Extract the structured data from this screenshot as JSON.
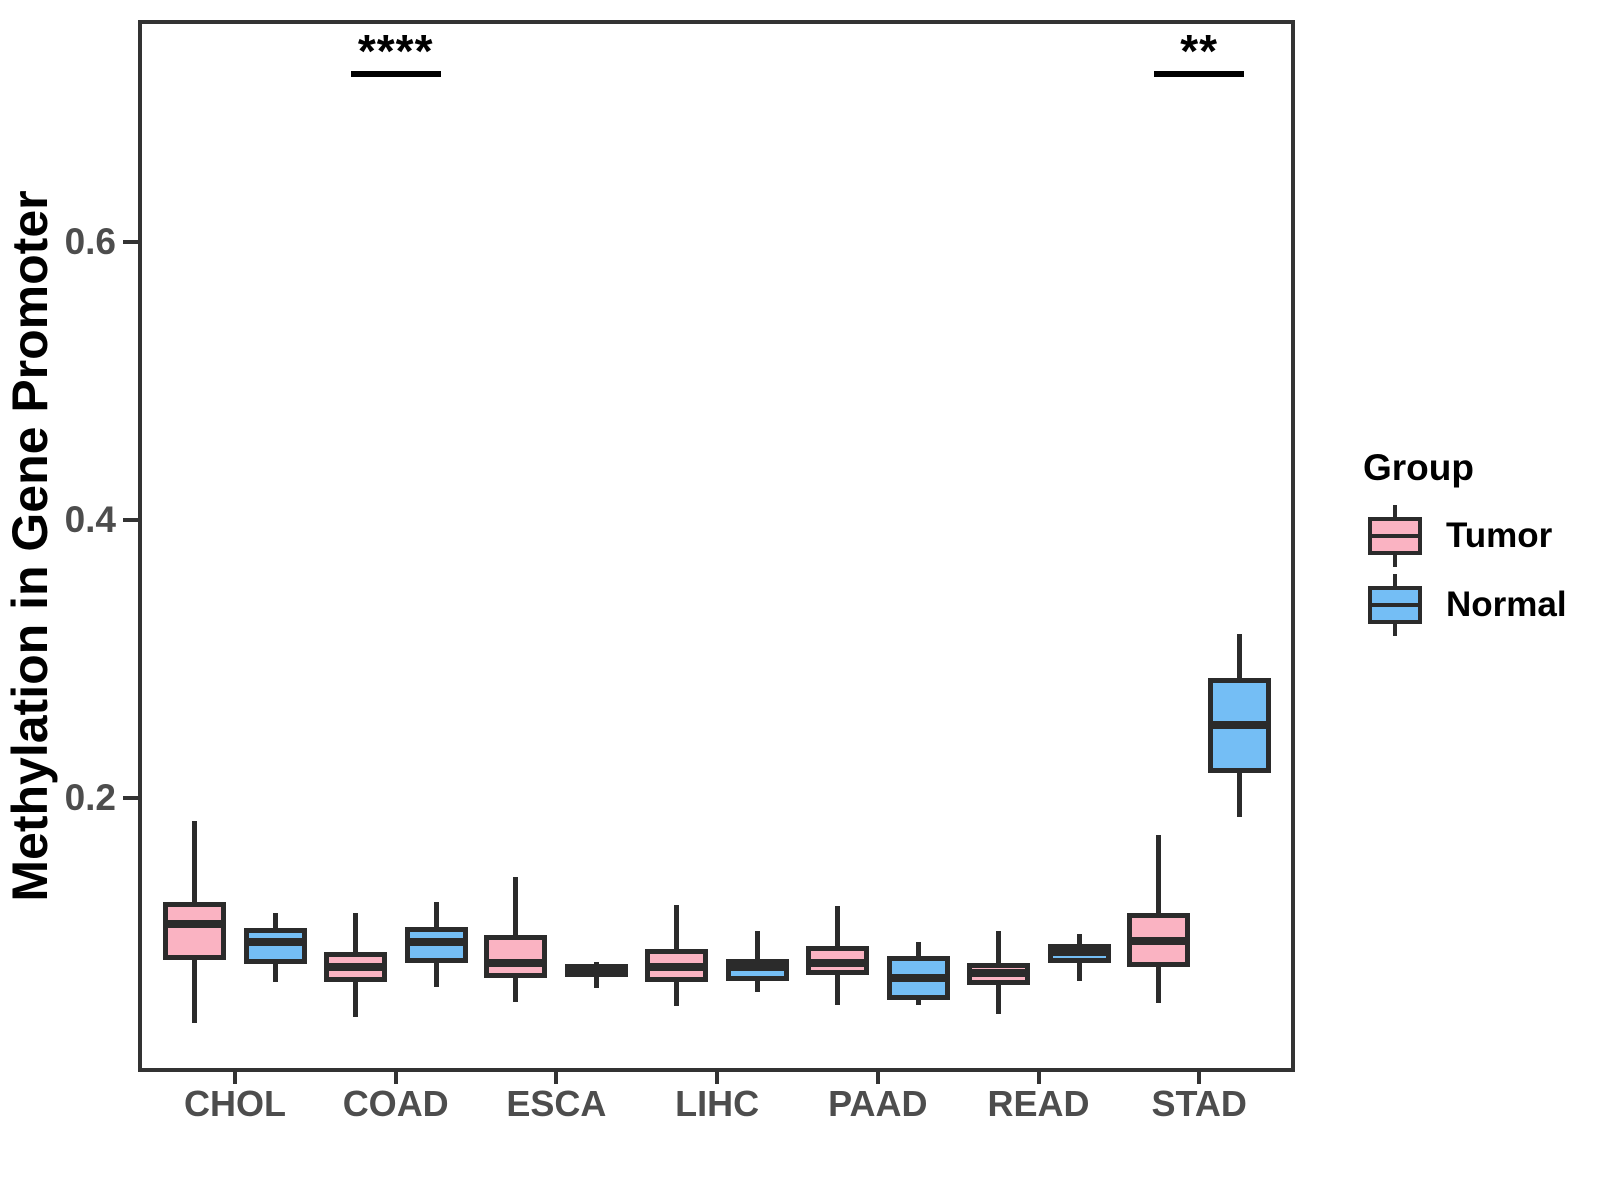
{
  "chart_data": {
    "type": "boxplot",
    "title": "",
    "xlabel": "",
    "ylabel": "Methylation in Gene Promoter",
    "categories": [
      "CHOL",
      "COAD",
      "ESCA",
      "LIHC",
      "PAAD",
      "READ",
      "STAD"
    ],
    "ylim": [
      0.004,
      0.758
    ],
    "yticks": [
      0.2,
      0.4,
      0.6
    ],
    "ytick_labels": [
      "0.2",
      "0.4",
      "0.6"
    ],
    "grid": false,
    "legend": {
      "title": "Group",
      "position": "right"
    },
    "colors": {
      "tumor": "#FAB3C2",
      "normal": "#74BEF5",
      "box_border": "#2b2b2b",
      "axis": "#333333",
      "tick_text": "#4d4d4d"
    },
    "series": [
      {
        "name": "Tumor",
        "color": "#FAB3C2",
        "boxes": [
          {
            "category": "CHOL",
            "min": 0.038,
            "q1": 0.083,
            "median": 0.109,
            "q3": 0.125,
            "max": 0.183
          },
          {
            "category": "COAD",
            "min": 0.042,
            "q1": 0.067,
            "median": 0.078,
            "q3": 0.089,
            "max": 0.117
          },
          {
            "category": "ESCA",
            "min": 0.053,
            "q1": 0.07,
            "median": 0.081,
            "q3": 0.101,
            "max": 0.143
          },
          {
            "category": "LIHC",
            "min": 0.05,
            "q1": 0.067,
            "median": 0.078,
            "q3": 0.091,
            "max": 0.123
          },
          {
            "category": "PAAD",
            "min": 0.051,
            "q1": 0.072,
            "median": 0.081,
            "q3": 0.093,
            "max": 0.122
          },
          {
            "category": "READ",
            "min": 0.044,
            "q1": 0.065,
            "median": 0.074,
            "q3": 0.081,
            "max": 0.104
          },
          {
            "category": "STAD",
            "min": 0.052,
            "q1": 0.078,
            "median": 0.097,
            "q3": 0.117,
            "max": 0.173
          }
        ]
      },
      {
        "name": "Normal",
        "color": "#74BEF5",
        "boxes": [
          {
            "category": "CHOL",
            "min": 0.067,
            "q1": 0.08,
            "median": 0.096,
            "q3": 0.106,
            "max": 0.117
          },
          {
            "category": "COAD",
            "min": 0.064,
            "q1": 0.081,
            "median": 0.096,
            "q3": 0.107,
            "max": 0.125
          },
          {
            "category": "ESCA",
            "min": 0.063,
            "q1": 0.071,
            "median": 0.075,
            "q3": 0.08,
            "max": 0.082
          },
          {
            "category": "LIHC",
            "min": 0.06,
            "q1": 0.068,
            "median": 0.078,
            "q3": 0.084,
            "max": 0.104
          },
          {
            "category": "PAAD",
            "min": 0.051,
            "q1": 0.054,
            "median": 0.07,
            "q3": 0.086,
            "max": 0.096
          },
          {
            "category": "READ",
            "min": 0.068,
            "q1": 0.081,
            "median": 0.089,
            "q3": 0.095,
            "max": 0.102
          },
          {
            "category": "STAD",
            "min": 0.186,
            "q1": 0.218,
            "median": 0.252,
            "q3": 0.286,
            "max": 0.318
          }
        ]
      }
    ],
    "annotations": [
      {
        "category": "COAD",
        "label": "****"
      },
      {
        "category": "STAD",
        "label": "**"
      }
    ]
  }
}
